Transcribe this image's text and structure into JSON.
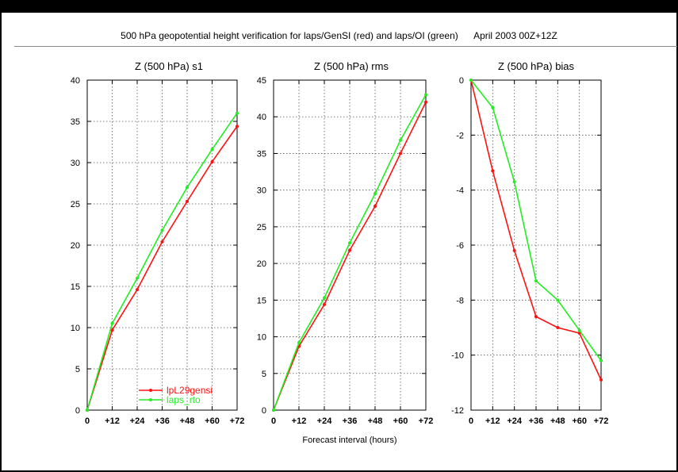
{
  "figure": {
    "title": "500 hPa geopotential height verification for laps/GenSI (red) and laps/OI (green)      April 2003 00Z+12Z",
    "xlabel": "Forecast interval (hours)"
  },
  "colors": {
    "red": "#ff1111",
    "green": "#22ee22",
    "grid": "#555555",
    "axis": "#000000"
  },
  "chart_data": [
    {
      "type": "line",
      "title": "Z (500 hPa) s1",
      "x": [
        0,
        12,
        24,
        36,
        48,
        60,
        72
      ],
      "xtick_labels": [
        "0",
        "+12",
        "+24",
        "+36",
        "+48",
        "+60",
        "+72"
      ],
      "ylim": [
        0,
        40
      ],
      "yticks": [
        0,
        5,
        10,
        15,
        20,
        25,
        30,
        35,
        40
      ],
      "grid": true,
      "legend": "bottom-left",
      "series": [
        {
          "name": "lpL29gensi",
          "color": "#ff1111",
          "values": [
            0,
            9.7,
            14.6,
            20.4,
            25.3,
            30.1,
            34.4
          ]
        },
        {
          "name": "laps_rto",
          "color": "#22ee22",
          "values": [
            0,
            10.5,
            16.0,
            21.8,
            27.0,
            31.6,
            36.0
          ]
        }
      ]
    },
    {
      "type": "line",
      "title": "Z (500 hPa) rms",
      "x": [
        0,
        12,
        24,
        36,
        48,
        60,
        72
      ],
      "xtick_labels": [
        "0",
        "+12",
        "+24",
        "+36",
        "+48",
        "+60",
        "+72"
      ],
      "ylim": [
        0,
        45
      ],
      "yticks": [
        0,
        5,
        10,
        15,
        20,
        25,
        30,
        35,
        40,
        45
      ],
      "grid": true,
      "series": [
        {
          "name": "lpL29gensi",
          "color": "#ff1111",
          "values": [
            0,
            8.7,
            14.4,
            21.8,
            27.8,
            35.0,
            42.0
          ]
        },
        {
          "name": "laps_rto",
          "color": "#22ee22",
          "values": [
            0,
            9.2,
            15.3,
            22.8,
            29.5,
            36.8,
            43.0
          ]
        }
      ]
    },
    {
      "type": "line",
      "title": "Z (500 hPa) bias",
      "x": [
        0,
        12,
        24,
        36,
        48,
        60,
        72
      ],
      "xtick_labels": [
        "0",
        "+12",
        "+24",
        "+36",
        "+48",
        "+60",
        "+72"
      ],
      "ylim": [
        -12,
        0
      ],
      "yticks": [
        -12,
        -10,
        -8,
        -6,
        -4,
        -2,
        0
      ],
      "grid": true,
      "series": [
        {
          "name": "lpL29gensi",
          "color": "#ff1111",
          "values": [
            0,
            -3.3,
            -6.2,
            -8.6,
            -9.0,
            -9.2,
            -10.9
          ]
        },
        {
          "name": "laps_rto",
          "color": "#22ee22",
          "values": [
            0,
            -1.0,
            -3.7,
            -7.3,
            -8.0,
            -9.1,
            -10.2
          ]
        }
      ]
    }
  ]
}
